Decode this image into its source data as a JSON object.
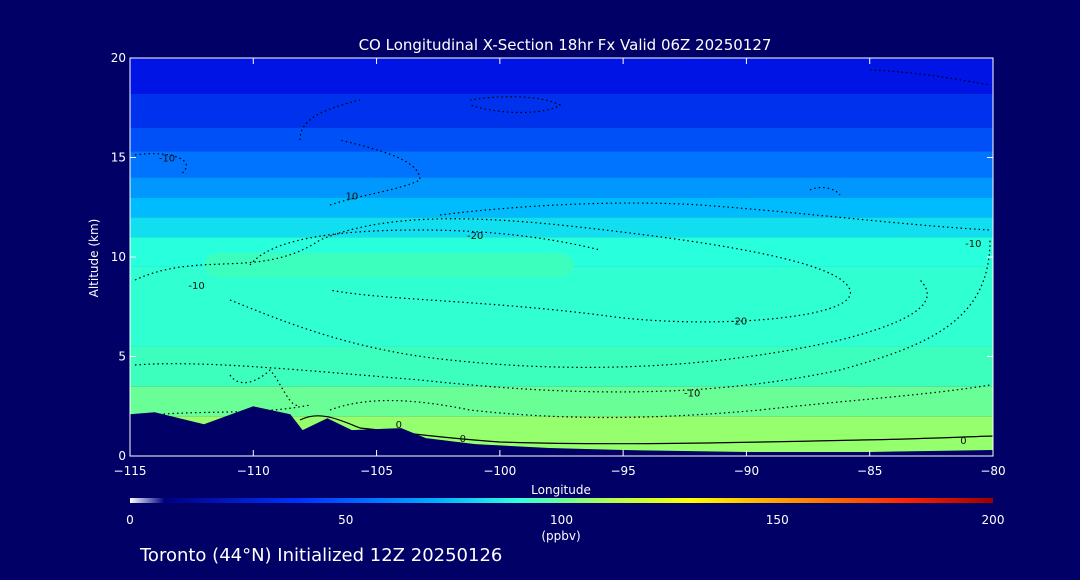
{
  "chart_data": {
    "type": "heatmap",
    "title": "CO Longitudinal X-Section 18hr  Fx Valid 06Z 20250127",
    "xlabel": "Longitude",
    "ylabel": "Altitude (km)",
    "xlim": [
      -115,
      -80
    ],
    "ylim": [
      0,
      20
    ],
    "x_ticks": [
      -115,
      -110,
      -105,
      -100,
      -95,
      -90,
      -85,
      -80
    ],
    "y_ticks": [
      0,
      5,
      10,
      15,
      20
    ],
    "colorbar": {
      "label": "(ppbv)",
      "range": [
        0,
        200
      ],
      "ticks": [
        0,
        50,
        100,
        150,
        200
      ]
    },
    "field_bands": [
      {
        "z_from": 18.2,
        "z_to": 20,
        "co_ppbv": 40
      },
      {
        "z_from": 16.5,
        "z_to": 18.2,
        "co_ppbv": 45
      },
      {
        "z_from": 15.3,
        "z_to": 16.5,
        "co_ppbv": 50
      },
      {
        "z_from": 14.0,
        "z_to": 15.3,
        "co_ppbv": 56
      },
      {
        "z_from": 13.0,
        "z_to": 14.0,
        "co_ppbv": 62
      },
      {
        "z_from": 12.0,
        "z_to": 13.0,
        "co_ppbv": 68
      },
      {
        "z_from": 11.0,
        "z_to": 12.0,
        "co_ppbv": 75
      },
      {
        "z_from": 9.5,
        "z_to": 11.0,
        "co_ppbv": 82
      },
      {
        "z_from": 5.5,
        "z_to": 9.5,
        "co_ppbv": 85
      },
      {
        "z_from": 3.5,
        "z_to": 5.5,
        "co_ppbv": 90
      },
      {
        "z_from": 2.0,
        "z_to": 3.5,
        "co_ppbv": 95
      },
      {
        "z_from": 0,
        "z_to": 2.0,
        "co_ppbv": 100
      }
    ],
    "field_patches": [
      {
        "x_from": -112,
        "x_to": -97,
        "z_from": 9.0,
        "z_to": 10.2,
        "co_ppbv": 90
      }
    ],
    "terrain_km": [
      {
        "lon": -115,
        "alt": 2.1
      },
      {
        "lon": -114,
        "alt": 2.2
      },
      {
        "lon": -112,
        "alt": 1.6
      },
      {
        "lon": -110,
        "alt": 2.5
      },
      {
        "lon": -108.5,
        "alt": 2.1
      },
      {
        "lon": -108,
        "alt": 1.3
      },
      {
        "lon": -107,
        "alt": 1.9
      },
      {
        "lon": -106,
        "alt": 1.3
      },
      {
        "lon": -104,
        "alt": 1.4
      },
      {
        "lon": -103,
        "alt": 0.9
      },
      {
        "lon": -101,
        "alt": 0.6
      },
      {
        "lon": -98,
        "alt": 0.4
      },
      {
        "lon": -95,
        "alt": 0.3
      },
      {
        "lon": -90,
        "alt": 0.2
      },
      {
        "lon": -85,
        "alt": 0.2
      },
      {
        "lon": -80,
        "alt": 0.3
      }
    ],
    "contour_labels": [
      {
        "text": "-10",
        "lon": -113.5,
        "alt": 14.8
      },
      {
        "text": "10",
        "lon": -106,
        "alt": 12.9
      },
      {
        "text": "-20",
        "lon": -101,
        "alt": 10.9
      },
      {
        "text": "-10",
        "lon": -112.3,
        "alt": 8.4
      },
      {
        "text": "-20",
        "lon": -90.3,
        "alt": 6.6
      },
      {
        "text": "-10",
        "lon": -92.2,
        "alt": 3.0
      },
      {
        "text": "0",
        "lon": -104.1,
        "alt": 1.4
      },
      {
        "text": "0",
        "lon": -101.5,
        "alt": 0.7
      },
      {
        "text": "0",
        "lon": -81.2,
        "alt": 0.6
      },
      {
        "text": "-10",
        "lon": -80.8,
        "alt": 10.5
      }
    ]
  },
  "footer": {
    "initialized": "Toronto (44°N) Initialized 12Z 20250126"
  }
}
